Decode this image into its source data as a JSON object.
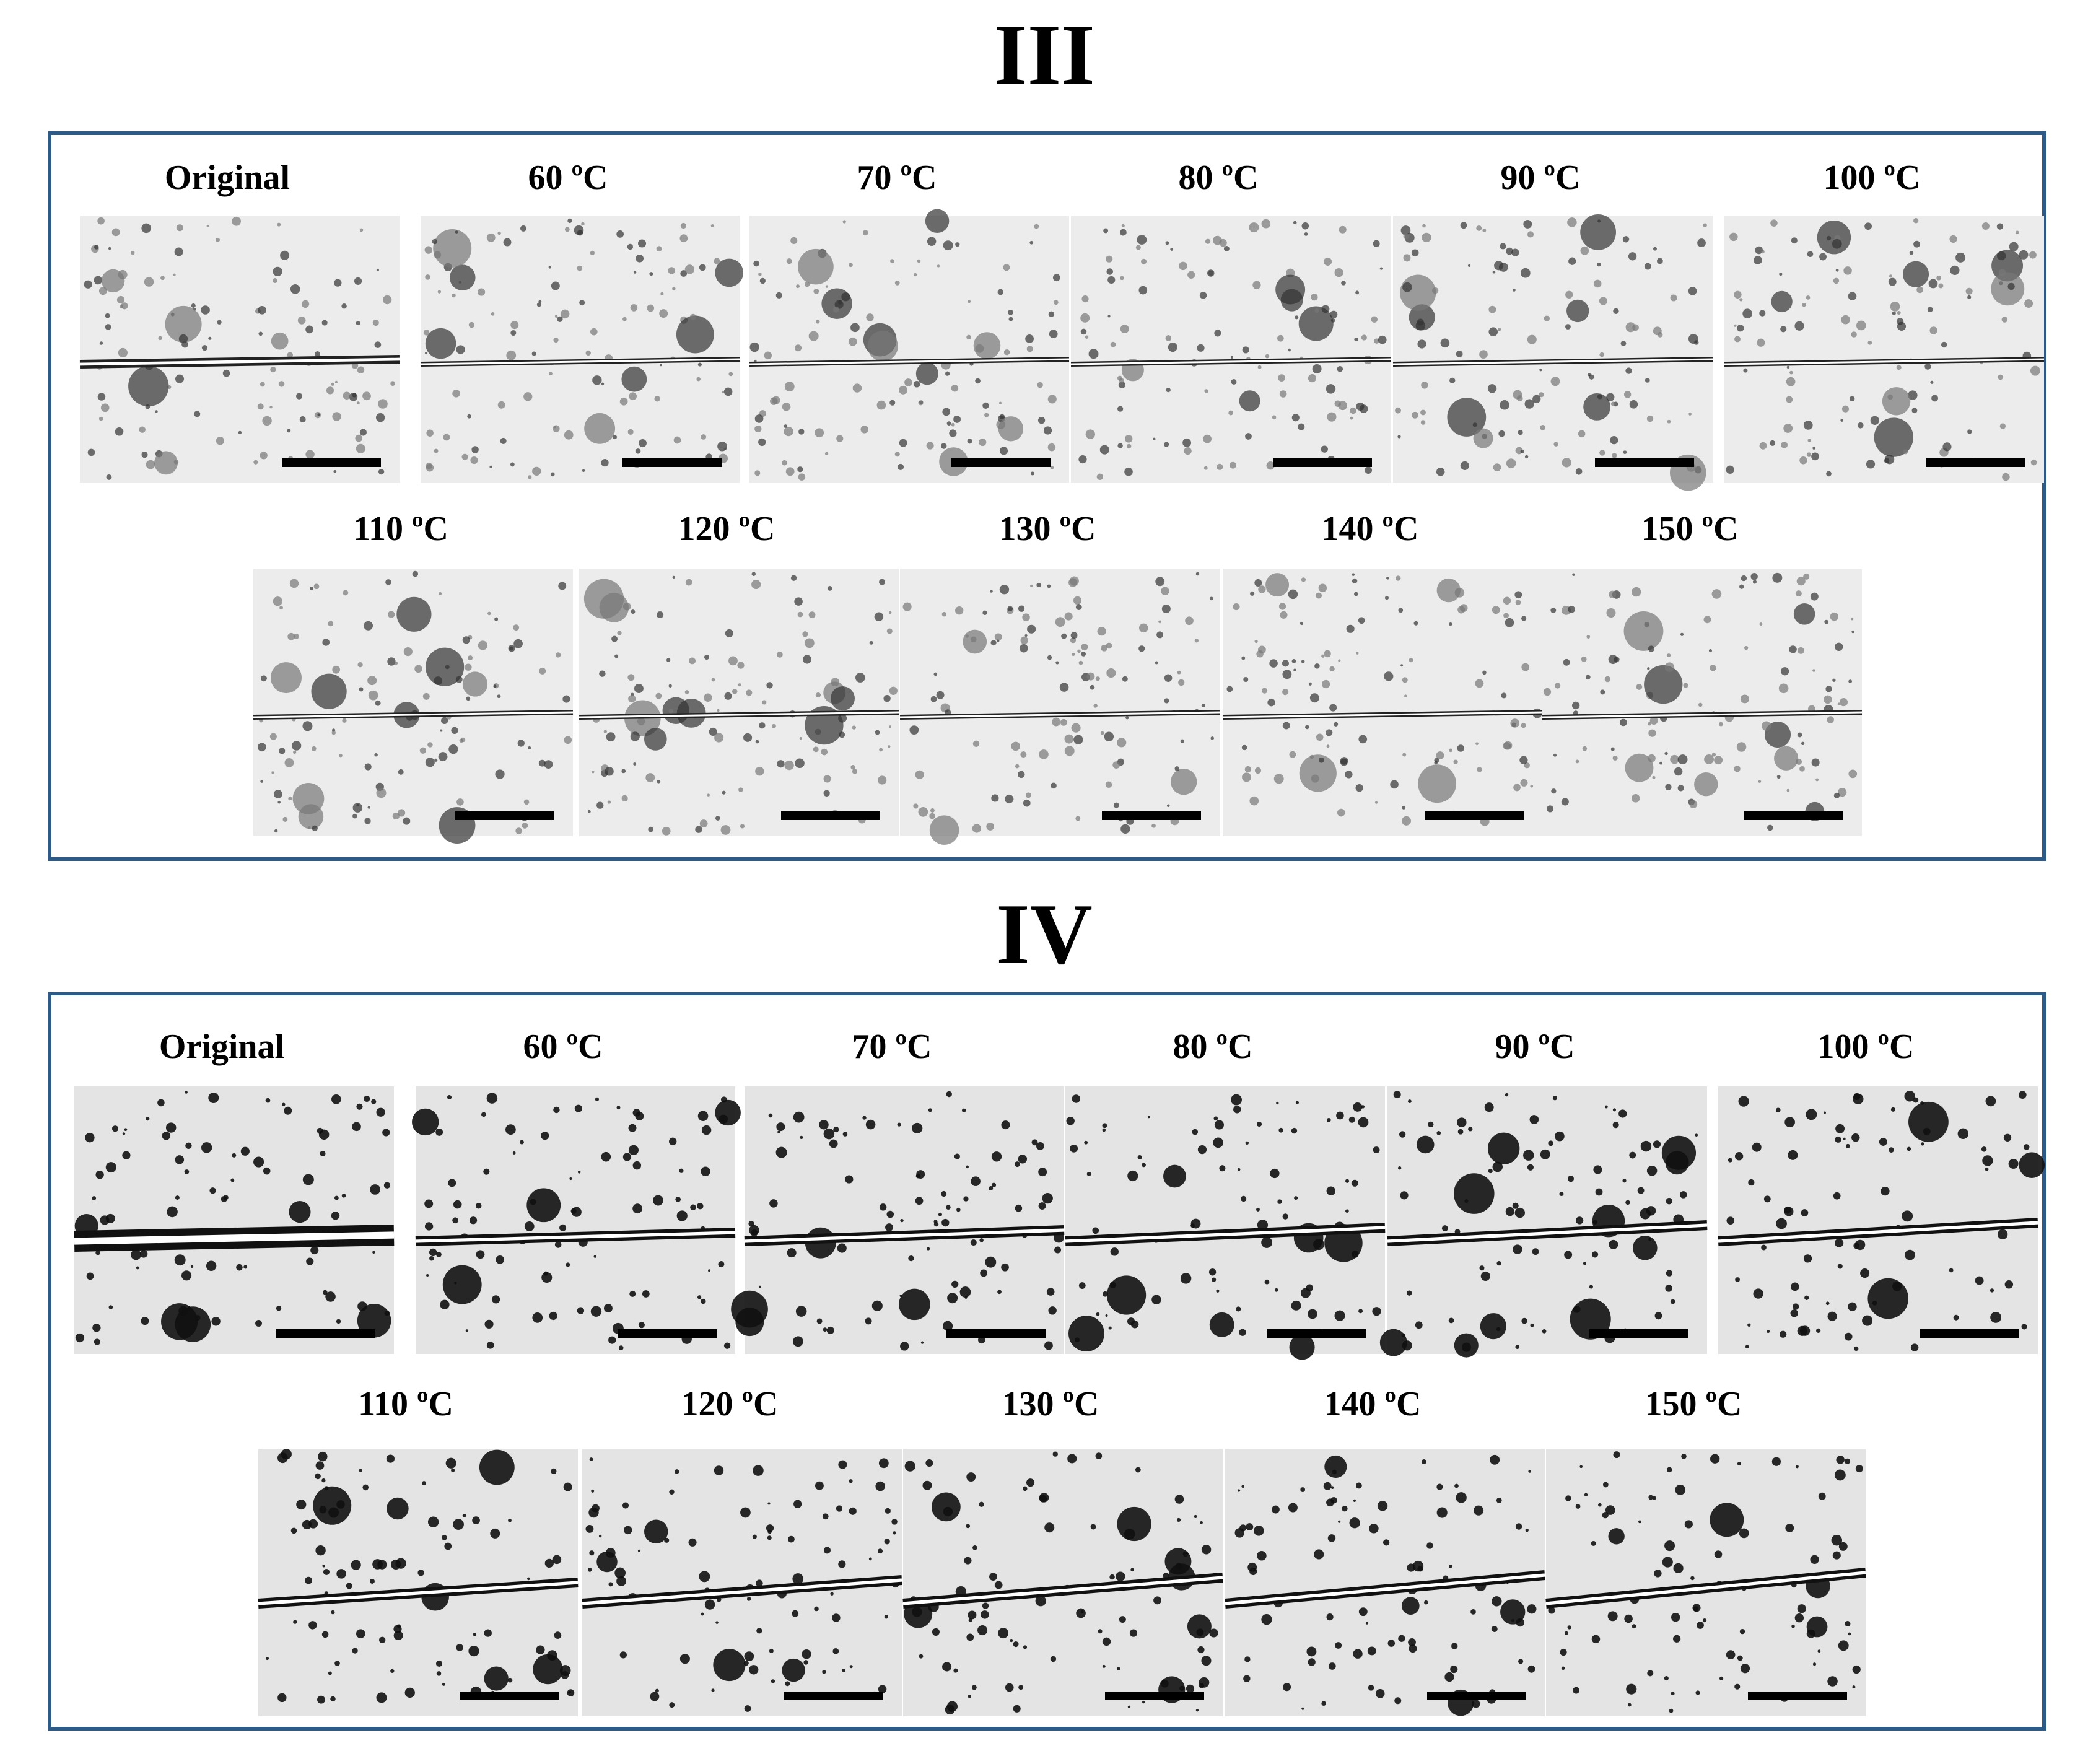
{
  "panels": [
    {
      "title": "III",
      "labels": [
        "Original",
        "60 ºC",
        "70 ºC",
        "80 ºC",
        "90 ºC",
        "100 ºC",
        "110 ºC",
        "120 ºC",
        "130 ºC",
        "140 ºC",
        "150 ºC"
      ]
    },
    {
      "title": "IV",
      "labels": [
        "Original",
        "60 ºC",
        "70 ºC",
        "80 ºC",
        "90 ºC",
        "100 ºC",
        "110 ºC",
        "120 ºC",
        "130 ºC",
        "140 ºC",
        "150 ºC"
      ]
    }
  ]
}
